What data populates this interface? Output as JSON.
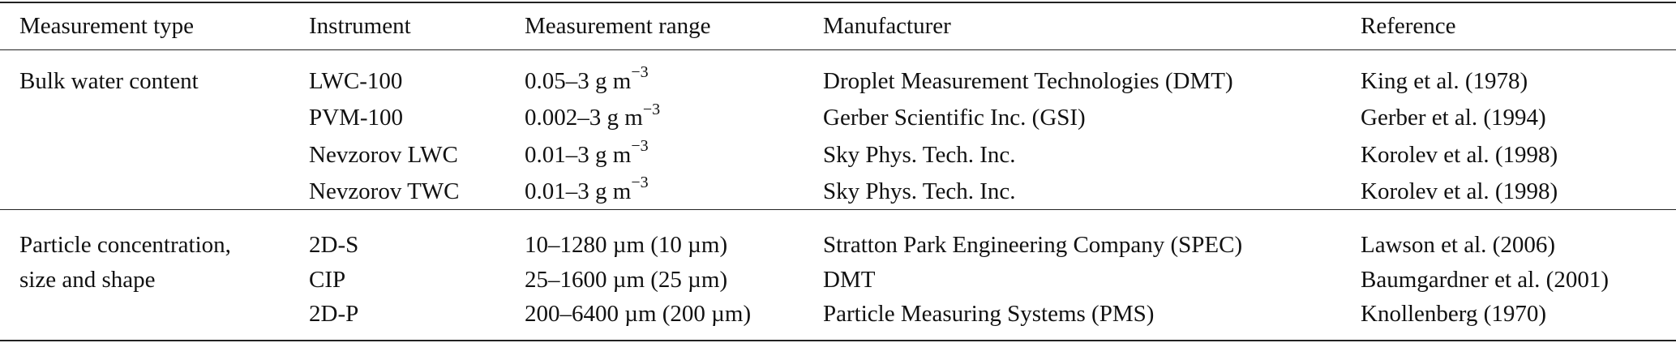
{
  "table": {
    "header": [
      "Measurement type",
      "Instrument",
      "Measurement range",
      "Manufacturer",
      "Reference"
    ],
    "groups": [
      {
        "measurement_type": [
          "Bulk water content"
        ],
        "rows": [
          {
            "instrument": "LWC-100",
            "range": {
              "text": "0.05–3 g m",
              "sup": "−3"
            },
            "manufacturer": "Droplet Measurement Technologies (DMT)",
            "reference": "King et al. (1978)"
          },
          {
            "instrument": "PVM-100",
            "range": {
              "text": "0.002–3 g m",
              "sup": "−3"
            },
            "manufacturer": "Gerber Scientific Inc. (GSI)",
            "reference": "Gerber et al. (1994)"
          },
          {
            "instrument": "Nevzorov LWC",
            "range": {
              "text": "0.01–3 g m",
              "sup": "−3"
            },
            "manufacturer": "Sky Phys. Tech. Inc.",
            "reference": "Korolev et al. (1998)"
          },
          {
            "instrument": "Nevzorov TWC",
            "range": {
              "text": "0.01–3 g m",
              "sup": "−3"
            },
            "manufacturer": "Sky Phys. Tech. Inc.",
            "reference": "Korolev et al. (1998)"
          }
        ]
      },
      {
        "measurement_type": [
          "Particle concentration,",
          "size and shape"
        ],
        "rows": [
          {
            "instrument": "2D-S",
            "range": {
              "text": "10–1280 µm (10 µm)"
            },
            "manufacturer": "Stratton Park Engineering Company (SPEC)",
            "reference": "Lawson et al. (2006)"
          },
          {
            "instrument": "CIP",
            "range": {
              "text": "25–1600 µm (25 µm)"
            },
            "manufacturer": "DMT",
            "reference": "Baumgardner et al. (2001)"
          },
          {
            "instrument": "2D-P",
            "range": {
              "text": "200–6400 µm (200 µm)"
            },
            "manufacturer": "Particle Measuring Systems (PMS)",
            "reference": "Knollenberg (1970)"
          }
        ]
      }
    ]
  }
}
